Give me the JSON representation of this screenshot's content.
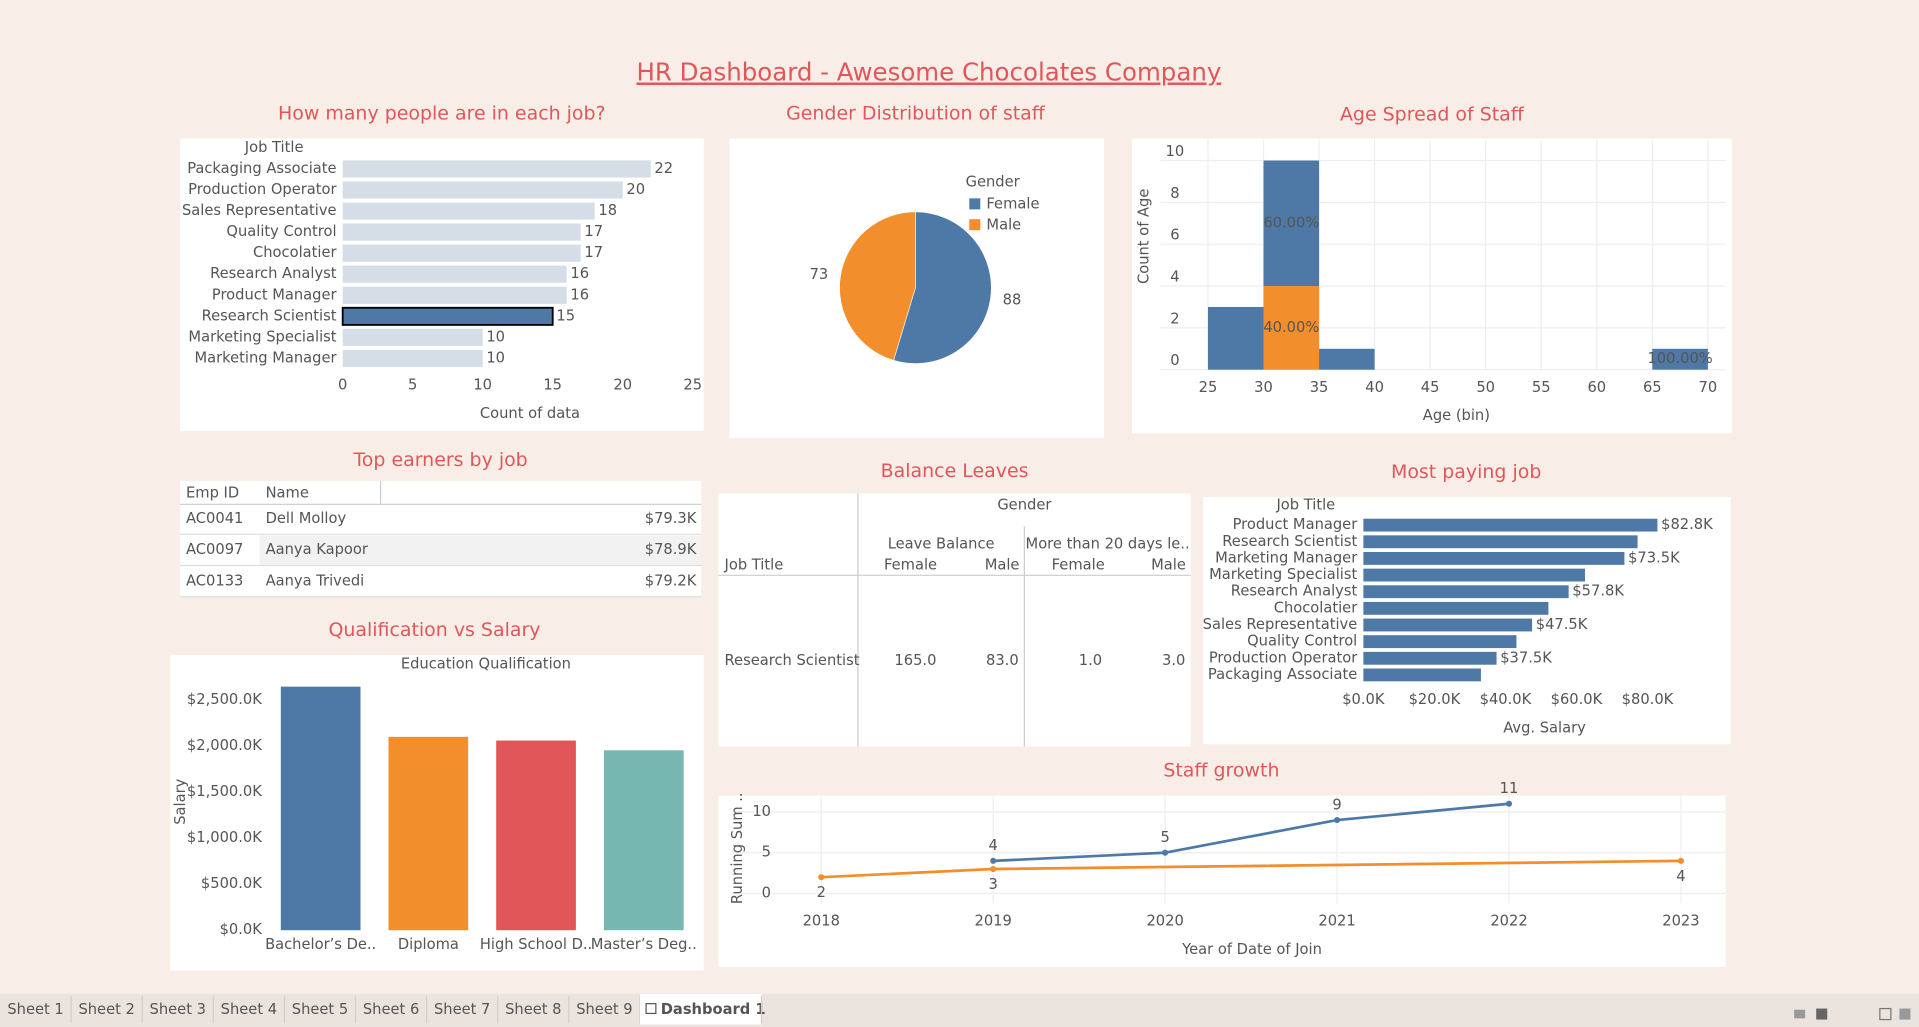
{
  "title": "HR Dashboard - Awesome Chocolates Company",
  "chart_data": [
    {
      "type": "bar",
      "orientation": "horizontal",
      "title": "How many people are in each job?",
      "y_label": "Job Title",
      "x_label": "Count of data",
      "categories": [
        "Packaging Associate",
        "Production Operator",
        "Sales Representative",
        "Quality Control",
        "Chocolatier",
        "Research Analyst",
        "Product Manager",
        "Research Scientist",
        "Marketing Specialist",
        "Marketing Manager"
      ],
      "values": [
        22,
        20,
        18,
        17,
        17,
        16,
        16,
        15,
        10,
        10
      ],
      "show_values": true,
      "color": "#d5dde6",
      "highlight": 7,
      "highlight_color": "#4e79a7",
      "xlim": [
        0,
        25
      ],
      "xticks": [
        0,
        5,
        10,
        15,
        20,
        25
      ]
    },
    {
      "type": "pie",
      "title": "Gender Distribution of staff",
      "legend_title": "Gender",
      "categories": [
        "Female",
        "Male"
      ],
      "values": [
        88,
        73
      ],
      "colors": [
        "#4e79a7",
        "#f28e2b"
      ]
    },
    {
      "type": "histogram",
      "title": "Age Spread of Staff",
      "x_label": "Age (bin)",
      "y_label": "Count of Age",
      "bins": [
        25,
        30,
        35,
        40,
        45,
        50,
        55,
        60,
        65,
        70
      ],
      "series": [
        {
          "color": "#f28e2b",
          "values": [
            0,
            4,
            0,
            0,
            0,
            0,
            0,
            0,
            0
          ],
          "percent_labels": [
            null,
            "40.00%",
            null,
            null,
            null,
            null,
            null,
            null,
            null
          ]
        },
        {
          "color": "#4e79a7",
          "values": [
            3,
            6,
            1,
            0,
            0,
            0,
            0,
            0,
            1
          ],
          "percent_labels": [
            null,
            "60.00%",
            null,
            null,
            null,
            null,
            null,
            null,
            "100.00%"
          ]
        }
      ],
      "xlim": [
        20.7,
        71.6
      ],
      "xticks": [
        25,
        30,
        35,
        40,
        45,
        50,
        55,
        60,
        65,
        70
      ],
      "ylim": [
        0,
        11
      ],
      "yticks": [
        0,
        2,
        4,
        6,
        8,
        10
      ],
      "grid": true
    },
    {
      "type": "bar",
      "title": "Qualification vs Salary",
      "header": "Education Qualification",
      "y_label": "Salary",
      "categories": [
        "Bachelor’s De..",
        "Diploma",
        "High School D..",
        "Master’s Deg.."
      ],
      "values": [
        2644000,
        2099000,
        2059000,
        1953000
      ],
      "colors": [
        "#4e79a7",
        "#f28e2b",
        "#e15759",
        "#76b7b2"
      ],
      "ylim": [
        0,
        2750000
      ],
      "yticks": [
        {
          "value": 0,
          "label": "$0.0K"
        },
        {
          "value": 500000,
          "label": "$500.0K"
        },
        {
          "value": 1000000,
          "label": "$1,000.0K"
        },
        {
          "value": 1500000,
          "label": "$1,500.0K"
        },
        {
          "value": 2000000,
          "label": "$2,000.0K"
        },
        {
          "value": 2500000,
          "label": "$2,500.0K"
        }
      ]
    },
    {
      "type": "bar",
      "orientation": "horizontal",
      "title": "Most paying job",
      "y_label": "Job Title",
      "x_label": "Avg. Salary",
      "categories": [
        "Product Manager",
        "Research Scientist",
        "Marketing Manager",
        "Marketing Specialist",
        "Research Analyst",
        "Chocolatier",
        "Sales Representative",
        "Quality Control",
        "Production Operator",
        "Packaging Associate"
      ],
      "values": [
        82800,
        77200,
        73500,
        62400,
        57800,
        52100,
        47500,
        43100,
        37500,
        33100
      ],
      "value_labels": [
        "$82.8K",
        null,
        "$73.5K",
        null,
        "$57.8K",
        null,
        "$47.5K",
        null,
        "$37.5K",
        null
      ],
      "color": "#4e79a7",
      "xlim": [
        0,
        102000
      ],
      "xticks": [
        {
          "value": 0,
          "label": "$0.0K"
        },
        {
          "value": 20000,
          "label": "$20.0K"
        },
        {
          "value": 40000,
          "label": "$40.0K"
        },
        {
          "value": 60000,
          "label": "$60.0K"
        },
        {
          "value": 80000,
          "label": "$80.0K"
        }
      ]
    },
    {
      "type": "line",
      "title": "Staff growth",
      "x_label": "Year of Date of Join",
      "y_label": "Running Sum ..",
      "series": [
        {
          "color": "#4e79a7",
          "x": [
            2019,
            2020,
            2021,
            2022
          ],
          "values": [
            4,
            5,
            9,
            11
          ]
        },
        {
          "color": "#f28e2b",
          "x": [
            2018,
            2019,
            2023
          ],
          "values": [
            2,
            3,
            4
          ]
        }
      ],
      "xlim": [
        2017.48,
        2023.26
      ],
      "xticks": [
        2018,
        2019,
        2020,
        2021,
        2022,
        2023
      ],
      "ylim": [
        -1.2,
        12
      ],
      "yticks": [
        0,
        5,
        10
      ],
      "grid": true
    }
  ],
  "tables": [
    {
      "title": "Top earners by job",
      "columns": [
        "Emp ID",
        "Name"
      ],
      "rows": [
        [
          "AC0041",
          "Dell Molloy",
          "$79.3K"
        ],
        [
          "AC0097",
          "Aanya Kapoor",
          "$78.9K"
        ],
        [
          "AC0133",
          "Aanya Trivedi",
          "$79.2K"
        ]
      ]
    },
    {
      "title": "Balance Leaves",
      "header": "Gender",
      "row_header": "Job Title",
      "groups": [
        "Leave Balance",
        "More than 20 days le.."
      ],
      "columns": [
        "Female",
        "Male",
        "Female",
        "Male"
      ],
      "rows": [
        [
          "Research Scientist",
          "165.0",
          "83.0",
          "1.0",
          "3.0"
        ]
      ]
    }
  ],
  "tabs": [
    "Sheet 1",
    "Sheet 2",
    "Sheet 3",
    "Sheet 4",
    "Sheet 5",
    "Sheet 6",
    "Sheet 7",
    "Sheet 8",
    "Sheet 9",
    "Dashboard 1"
  ]
}
